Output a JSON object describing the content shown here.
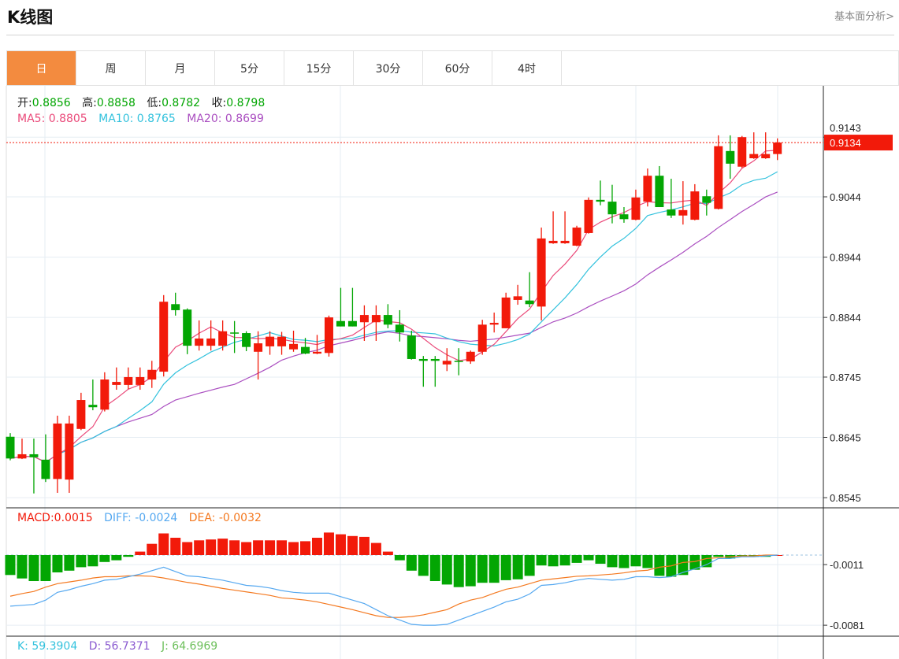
{
  "header": {
    "title": "K线图",
    "link": "基本面分析>"
  },
  "tabs": [
    {
      "label": "日",
      "active": true
    },
    {
      "label": "周"
    },
    {
      "label": "月"
    },
    {
      "label": "5分"
    },
    {
      "label": "15分"
    },
    {
      "label": "30分"
    },
    {
      "label": "60分"
    },
    {
      "label": "4时"
    }
  ],
  "ohlc_legend": {
    "open_label": "开:",
    "open": "0.8856",
    "high_label": "高:",
    "high": "0.8858",
    "low_label": "低:",
    "low": "0.8782",
    "close_label": "收:",
    "close": "0.8798"
  },
  "ma_legend": {
    "ma5": "MA5: 0.8805",
    "ma10": "MA10: 0.8765",
    "ma20": "MA20: 0.8699"
  },
  "macd_legend": {
    "macd": "MACD:0.0015",
    "diff": "DIFF: -0.0024",
    "dea": "DEA: -0.0032"
  },
  "kdj_legend": {
    "k": "K: 59.3904",
    "d": "D: 56.7371",
    "j": "J: 64.6969"
  },
  "colors": {
    "up": "#f21a0a",
    "down": "#03a603",
    "ma5": "#ea4a7a",
    "ma10": "#33c2dd",
    "ma20": "#aa4ec0",
    "diff": "#55a8f0",
    "dea": "#f47920",
    "accent": "#f38b3f"
  },
  "chart_data": {
    "type": "candlestick",
    "price_axis": {
      "ticks": [
        "0.9143",
        "0.9044",
        "0.8944",
        "0.8844",
        "0.8745",
        "0.8645",
        "0.8545"
      ],
      "range": [
        0.852,
        0.919
      ]
    },
    "last_price": "0.9134",
    "macd_axis": {
      "ticks": [
        "-0.0011",
        "-0.0081"
      ]
    },
    "candles": [
      [
        0.8646,
        0.8652,
        0.8607,
        0.861
      ],
      [
        0.861,
        0.8643,
        0.8609,
        0.8617
      ],
      [
        0.8617,
        0.8643,
        0.8552,
        0.8612
      ],
      [
        0.8608,
        0.865,
        0.8571,
        0.8576
      ],
      [
        0.8576,
        0.8681,
        0.8553,
        0.8668
      ],
      [
        0.8575,
        0.8681,
        0.8553,
        0.8668
      ],
      [
        0.8659,
        0.8719,
        0.8657,
        0.8707
      ],
      [
        0.8699,
        0.8741,
        0.869,
        0.8695
      ],
      [
        0.8691,
        0.8753,
        0.8688,
        0.8741
      ],
      [
        0.8732,
        0.8761,
        0.8724,
        0.8737
      ],
      [
        0.8732,
        0.8761,
        0.8725,
        0.8745
      ],
      [
        0.8732,
        0.8761,
        0.8724,
        0.8745
      ],
      [
        0.8741,
        0.8772,
        0.8727,
        0.8757
      ],
      [
        0.8754,
        0.8881,
        0.8746,
        0.887
      ],
      [
        0.8866,
        0.8885,
        0.8847,
        0.8856
      ],
      [
        0.8857,
        0.8859,
        0.8783,
        0.8797
      ],
      [
        0.8797,
        0.8839,
        0.8789,
        0.8809
      ],
      [
        0.8797,
        0.8839,
        0.8789,
        0.8809
      ],
      [
        0.8797,
        0.8839,
        0.8789,
        0.8821
      ],
      [
        0.8819,
        0.8838,
        0.8785,
        0.8818
      ],
      [
        0.8818,
        0.8821,
        0.8788,
        0.8795
      ],
      [
        0.8787,
        0.8821,
        0.8741,
        0.8801
      ],
      [
        0.8796,
        0.8821,
        0.8782,
        0.8812
      ],
      [
        0.8796,
        0.882,
        0.8782,
        0.8812
      ],
      [
        0.8791,
        0.8822,
        0.8787,
        0.88
      ],
      [
        0.8795,
        0.881,
        0.8783,
        0.8784
      ],
      [
        0.8784,
        0.8815,
        0.8783,
        0.8787
      ],
      [
        0.8785,
        0.8847,
        0.8779,
        0.8844
      ],
      [
        0.8838,
        0.8893,
        0.8829,
        0.8829
      ],
      [
        0.8838,
        0.8893,
        0.8829,
        0.8829
      ],
      [
        0.8836,
        0.8864,
        0.8805,
        0.8848
      ],
      [
        0.8836,
        0.8864,
        0.8805,
        0.8848
      ],
      [
        0.8848,
        0.8866,
        0.8826,
        0.8832
      ],
      [
        0.8832,
        0.8856,
        0.8804,
        0.8819
      ],
      [
        0.8814,
        0.8822,
        0.8774,
        0.8775
      ],
      [
        0.8775,
        0.878,
        0.8729,
        0.8772
      ],
      [
        0.8775,
        0.878,
        0.8729,
        0.8772
      ],
      [
        0.8766,
        0.8793,
        0.8755,
        0.8772
      ],
      [
        0.8772,
        0.8793,
        0.8748,
        0.8771
      ],
      [
        0.8771,
        0.8789,
        0.8767,
        0.8787
      ],
      [
        0.8787,
        0.884,
        0.8782,
        0.8832
      ],
      [
        0.8832,
        0.8852,
        0.8819,
        0.8835
      ],
      [
        0.8826,
        0.8885,
        0.8826,
        0.8877
      ],
      [
        0.8873,
        0.8898,
        0.8865,
        0.8879
      ],
      [
        0.8872,
        0.8919,
        0.8861,
        0.8866
      ],
      [
        0.8862,
        0.8993,
        0.8839,
        0.8975
      ],
      [
        0.8967,
        0.902,
        0.8966,
        0.8971
      ],
      [
        0.8967,
        0.902,
        0.8966,
        0.8971
      ],
      [
        0.8963,
        0.8996,
        0.8962,
        0.8993
      ],
      [
        0.8984,
        0.9043,
        0.8983,
        0.9039
      ],
      [
        0.9039,
        0.9071,
        0.903,
        0.9036
      ],
      [
        0.9036,
        0.9064,
        0.9,
        0.9015
      ],
      [
        0.9015,
        0.9027,
        0.9001,
        0.9007
      ],
      [
        0.9006,
        0.9056,
        0.9005,
        0.9043
      ],
      [
        0.9036,
        0.9091,
        0.9028,
        0.9079
      ],
      [
        0.9079,
        0.9095,
        0.9027,
        0.9027
      ],
      [
        0.9023,
        0.9074,
        0.9009,
        0.9013
      ],
      [
        0.9013,
        0.907,
        0.8998,
        0.9022
      ],
      [
        0.9006,
        0.9065,
        0.9005,
        0.9053
      ],
      [
        0.9045,
        0.9056,
        0.9013,
        0.9034
      ],
      [
        0.9024,
        0.9146,
        0.9023,
        0.9128
      ],
      [
        0.912,
        0.9146,
        0.9074,
        0.9099
      ],
      [
        0.9094,
        0.9145,
        0.9092,
        0.9143
      ],
      [
        0.9108,
        0.9151,
        0.9107,
        0.9115
      ],
      [
        0.9108,
        0.9151,
        0.9107,
        0.9115
      ],
      [
        0.9115,
        0.9141,
        0.9105,
        0.9134
      ]
    ],
    "macd": [
      -0.0023,
      -0.0027,
      -0.003,
      -0.003,
      -0.002,
      -0.0018,
      -0.0014,
      -0.0013,
      -0.0008,
      -0.0006,
      -0.0002,
      0.0004,
      0.0013,
      0.0025,
      0.002,
      0.0015,
      0.0017,
      0.0018,
      0.0019,
      0.0017,
      0.0015,
      0.0017,
      0.0017,
      0.0017,
      0.0015,
      0.0016,
      0.002,
      0.0026,
      0.0024,
      0.0022,
      0.0021,
      0.0014,
      0.0004,
      -0.0006,
      -0.0018,
      -0.0024,
      -0.003,
      -0.0034,
      -0.0037,
      -0.0036,
      -0.0032,
      -0.0032,
      -0.0029,
      -0.0028,
      -0.0024,
      -0.0012,
      -0.0013,
      -0.0012,
      -0.0009,
      -0.0006,
      -0.001,
      -0.0014,
      -0.0015,
      -0.0013,
      -0.0015,
      -0.0024,
      -0.0025,
      -0.0023,
      -0.0017,
      -0.0014,
      -0.0002,
      -0.0004,
      -0.0002,
      -0.0002,
      -0.0002,
      0.0
    ],
    "diff": [
      -0.0059,
      -0.0058,
      -0.0057,
      -0.0052,
      -0.0043,
      -0.004,
      -0.0036,
      -0.0033,
      -0.0029,
      -0.0028,
      -0.0025,
      -0.0022,
      -0.0018,
      -0.0014,
      -0.0019,
      -0.0024,
      -0.0025,
      -0.0027,
      -0.0029,
      -0.0032,
      -0.0035,
      -0.0036,
      -0.0038,
      -0.0041,
      -0.0043,
      -0.0044,
      -0.0044,
      -0.0044,
      -0.0048,
      -0.0052,
      -0.0056,
      -0.0063,
      -0.007,
      -0.0075,
      -0.008,
      -0.0081,
      -0.0081,
      -0.008,
      -0.0075,
      -0.007,
      -0.0065,
      -0.006,
      -0.0054,
      -0.0051,
      -0.0045,
      -0.0035,
      -0.0034,
      -0.0032,
      -0.0029,
      -0.0027,
      -0.0028,
      -0.0029,
      -0.0028,
      -0.0025,
      -0.0025,
      -0.0026,
      -0.0025,
      -0.002,
      -0.0016,
      -0.0011,
      -0.0004,
      -0.0004,
      -0.0002,
      -0.0002,
      -0.0001,
      0.0
    ]
  }
}
